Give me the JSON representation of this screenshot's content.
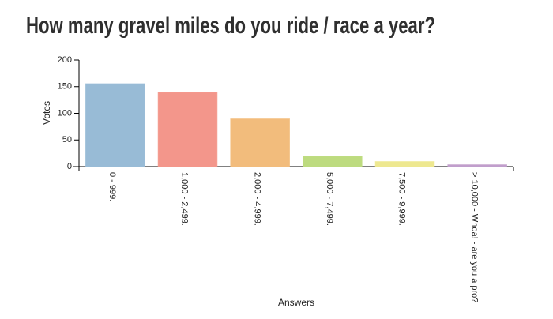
{
  "chart_data": {
    "type": "bar",
    "title": "How many gravel miles do you ride / race a year?",
    "x_label": "Answers",
    "y_label": "Votes",
    "categories": [
      "0 - 999.",
      "1,000 - 2,499.",
      "2,000 - 4,999.",
      "5,000 - 7,499.",
      "7,500 - 9,999.",
      "> 10,000 - Whoa! - are you a pro?"
    ],
    "values": [
      155,
      139,
      89,
      19,
      9,
      3
    ],
    "colors": [
      "#9dc1dd",
      "#fb9b8f",
      "#f9c280",
      "#c3e283",
      "#f5ef94",
      "#c7a3d2"
    ],
    "ylim": [
      0,
      200
    ],
    "yticks": [
      0,
      50,
      100,
      150,
      200
    ]
  }
}
